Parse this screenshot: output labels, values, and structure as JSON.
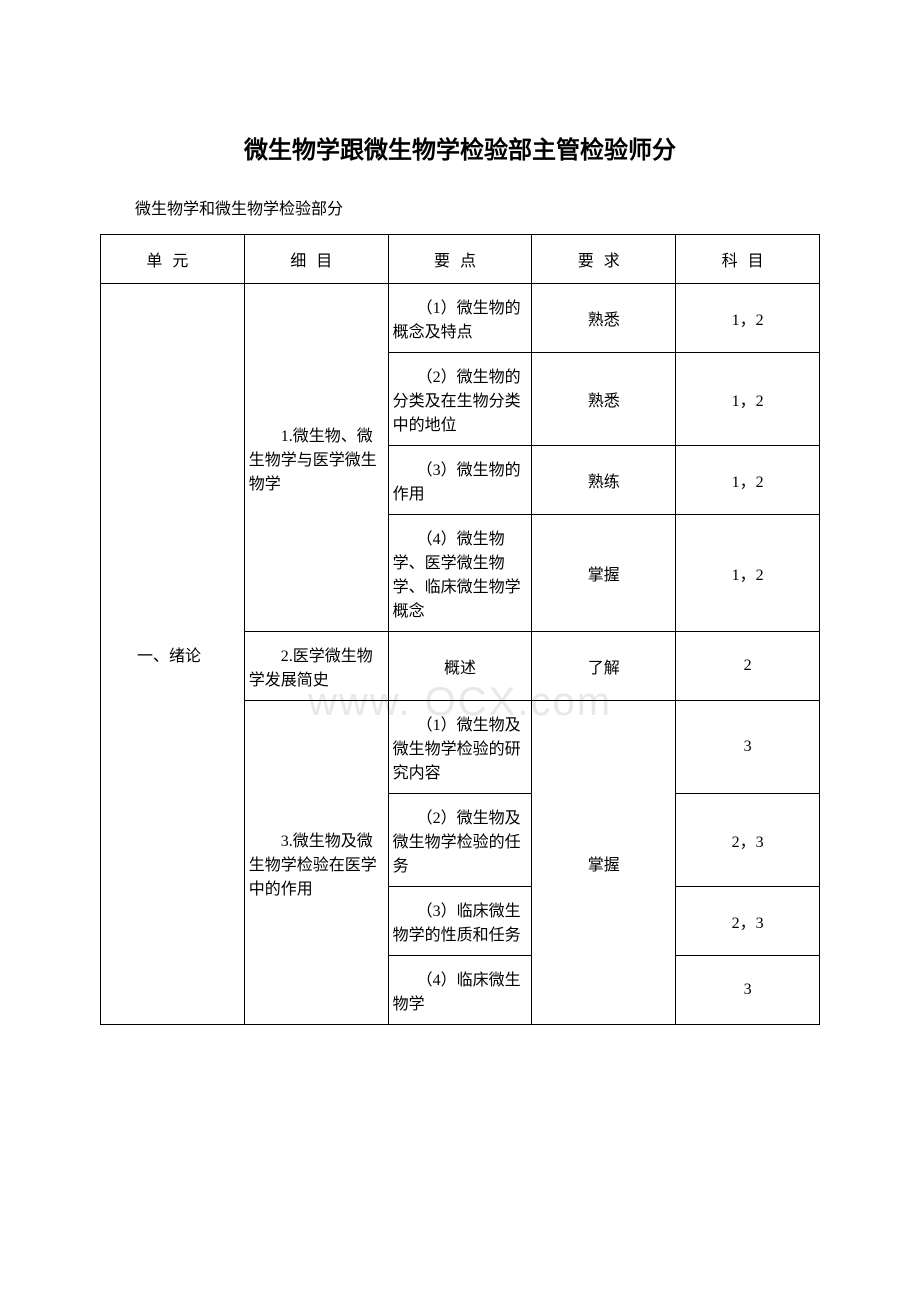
{
  "title": "微生物学跟微生物学检验部主管检验师分",
  "subtitle": "微生物学和微生物学检验部分",
  "watermark": "www.           OCX.com",
  "headers": {
    "col1": "单元",
    "col2": "细目",
    "col3": "要点",
    "col4": "要求",
    "col5": "科目"
  },
  "unit_label": "　　一、绪论",
  "sections": {
    "s1": {
      "label": "　　1.微生物、微生物学与医学微生物学",
      "rows": [
        {
          "point": "　　（1）微生物的概念及特点",
          "req": "熟悉",
          "subj": "1，2"
        },
        {
          "point": "　　（2）微生物的分类及在生物分类中的地位",
          "req": "熟悉",
          "subj": "1，2"
        },
        {
          "point": "　　（3）微生物的作用",
          "req": "熟练",
          "subj": "1，2"
        },
        {
          "point": "　　（4）微生物学、医学微生物学、临床微生物学概念",
          "req": "掌握",
          "subj": "1，2"
        }
      ]
    },
    "s2": {
      "label": "　　2.医学微生物学发展简史",
      "point": "概述",
      "req": "了解",
      "subj": "2"
    },
    "s3": {
      "label": "　　3.微生物及微生物学检验在医学中的作用",
      "req": "掌握",
      "rows": [
        {
          "point": "　　（1）微生物及微生物学检验的研究内容",
          "subj": "3"
        },
        {
          "point": "　　（2）微生物及微生物学检验的任务",
          "subj": "2，3"
        },
        {
          "point": "　　（3）临床微生物学的性质和任务",
          "subj": "2，3"
        },
        {
          "point": "　　（4）临床微生物学",
          "subj": "3"
        }
      ]
    }
  },
  "colors": {
    "background": "#ffffff",
    "border": "#000000",
    "text": "#000000",
    "watermark": "#e8e8e8"
  }
}
